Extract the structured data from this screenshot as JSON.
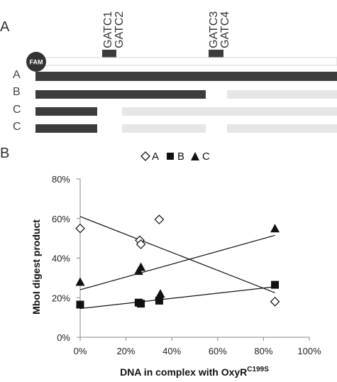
{
  "panel_a": {
    "label": "A",
    "fam_label": "FAM",
    "sites": [
      "GATC1",
      "GATC2",
      "GATC3",
      "GATC4"
    ],
    "rows": [
      {
        "label": "A"
      },
      {
        "label": "B"
      },
      {
        "label": "C"
      },
      {
        "label": "C"
      }
    ],
    "colors": {
      "dark": "#3c3c3c",
      "light": "#e8e8e8",
      "outline": "#cfcfcf"
    }
  },
  "panel_b": {
    "label": "B"
  },
  "chart_data": {
    "type": "scatter",
    "xlabel": "DNA in complex with OxyR",
    "xlabel_superscript": "C199S",
    "ylabel": "MboI digest product",
    "xlim": [
      0,
      100
    ],
    "ylim": [
      0,
      80
    ],
    "x_ticks": [
      0,
      20,
      40,
      60,
      80,
      100
    ],
    "y_ticks": [
      0,
      20,
      40,
      60,
      80
    ],
    "x_tick_labels": [
      "0%",
      "20%",
      "40%",
      "60%",
      "80%",
      "100%"
    ],
    "y_tick_labels": [
      "0%",
      "20%",
      "40%",
      "60%",
      "80%"
    ],
    "legend_position": "top",
    "grid": false,
    "series": [
      {
        "name": "A",
        "marker": "diamond-open",
        "points": [
          [
            0,
            55
          ],
          [
            26,
            49
          ],
          [
            26.5,
            47
          ],
          [
            34.5,
            59.5
          ],
          [
            85,
            18
          ]
        ],
        "trend": [
          [
            0,
            61
          ],
          [
            85,
            22.5
          ]
        ]
      },
      {
        "name": "B",
        "marker": "square-filled",
        "points": [
          [
            0,
            16.5
          ],
          [
            25.5,
            17.5
          ],
          [
            26.5,
            17
          ],
          [
            34.5,
            18.5
          ],
          [
            85,
            26.5
          ]
        ],
        "trend": [
          [
            0,
            14.5
          ],
          [
            85,
            25.5
          ]
        ]
      },
      {
        "name": "C",
        "marker": "triangle-filled",
        "points": [
          [
            0,
            28
          ],
          [
            25.5,
            33.5
          ],
          [
            26.5,
            35.5
          ],
          [
            34.5,
            21
          ],
          [
            35,
            22
          ],
          [
            85,
            55
          ]
        ],
        "trend": [
          [
            0,
            24
          ],
          [
            85,
            51.5
          ]
        ]
      }
    ]
  }
}
